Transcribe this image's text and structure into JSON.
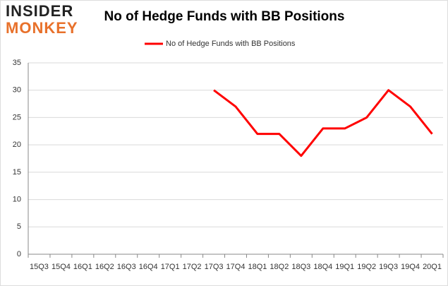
{
  "logo": {
    "line1": "INSIDER",
    "line2": "MONKEY"
  },
  "chart_data": {
    "type": "line",
    "title": "No of Hedge Funds with BB Positions",
    "categories": [
      "15Q3",
      "15Q4",
      "16Q1",
      "16Q2",
      "16Q3",
      "16Q4",
      "17Q1",
      "17Q2",
      "17Q3",
      "17Q4",
      "18Q1",
      "18Q2",
      "18Q3",
      "18Q4",
      "19Q1",
      "19Q2",
      "19Q3",
      "19Q4",
      "20Q1"
    ],
    "series": [
      {
        "name": "No of Hedge Funds with BB Positions",
        "color": "#ff0000",
        "values": [
          null,
          null,
          null,
          null,
          null,
          null,
          null,
          null,
          30,
          27,
          22,
          22,
          18,
          23,
          23,
          25,
          30,
          27,
          22
        ]
      }
    ],
    "ylim": [
      0,
      35
    ],
    "yticks": [
      0,
      5,
      10,
      15,
      20,
      25,
      30,
      35
    ],
    "grid": true,
    "legend": "top"
  }
}
